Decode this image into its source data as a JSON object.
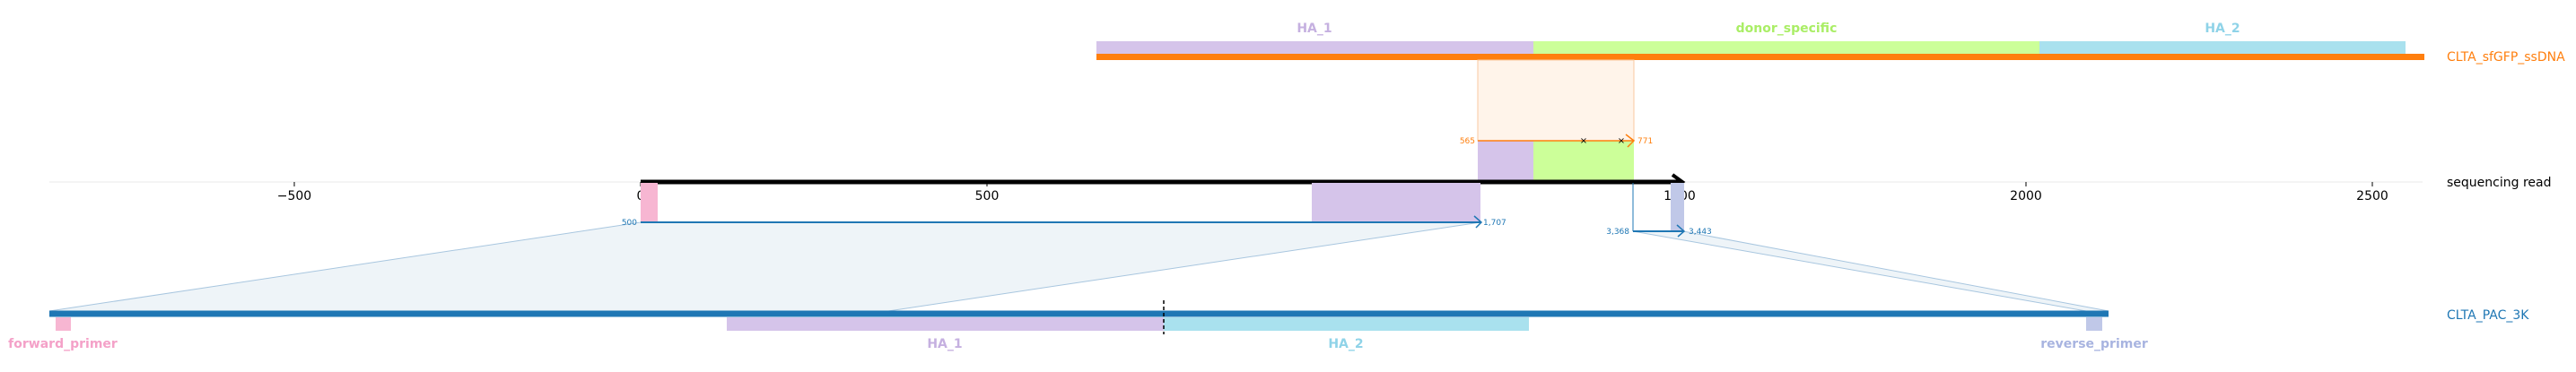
{
  "colors": {
    "donor": "#ff7f0e",
    "reference": "#1f77b4",
    "read": "#000000",
    "HA_1": "#d5c4ea",
    "HA_1_text": "#c5b0e0",
    "HA_2": "#a9e1ee",
    "HA_2_text": "#8fd3e8",
    "donor_specific": "#ccff99",
    "donor_specific_text": "#aaee66",
    "forward_primer": "#f7b6d2",
    "forward_primer_text": "#f4a1c8",
    "reverse_primer": "#c0c8e8",
    "reverse_primer_text": "#a8b4e0"
  },
  "read": {
    "name": "sequencing read",
    "axis": {
      "ticks": [
        -500,
        0,
        500,
        1000,
        1500,
        2000,
        2500
      ],
      "tick_labels": [
        "−500",
        "0",
        "500",
        "1000",
        "1500",
        "2000",
        "2500"
      ]
    }
  },
  "donor": {
    "name": "CLTA_sfGFP_ssDNA",
    "features": [
      {
        "id": "HA_1",
        "label": "HA_1"
      },
      {
        "id": "donor_specific",
        "label": "donor_specific"
      },
      {
        "id": "HA_2",
        "label": "HA_2"
      }
    ],
    "alignment": {
      "start_label": "565",
      "end_label": "771"
    }
  },
  "reference": {
    "name": "CLTA_PAC_3K",
    "features": [
      {
        "id": "forward_primer",
        "label": "forward_primer"
      },
      {
        "id": "HA_1",
        "label": "HA_1"
      },
      {
        "id": "HA_2",
        "label": "HA_2"
      },
      {
        "id": "reverse_primer",
        "label": "reverse_primer"
      }
    ],
    "alignments": [
      {
        "start_label": "500",
        "end_label": "1,707"
      },
      {
        "start_label": "3,368",
        "end_label": "3,443"
      }
    ]
  }
}
